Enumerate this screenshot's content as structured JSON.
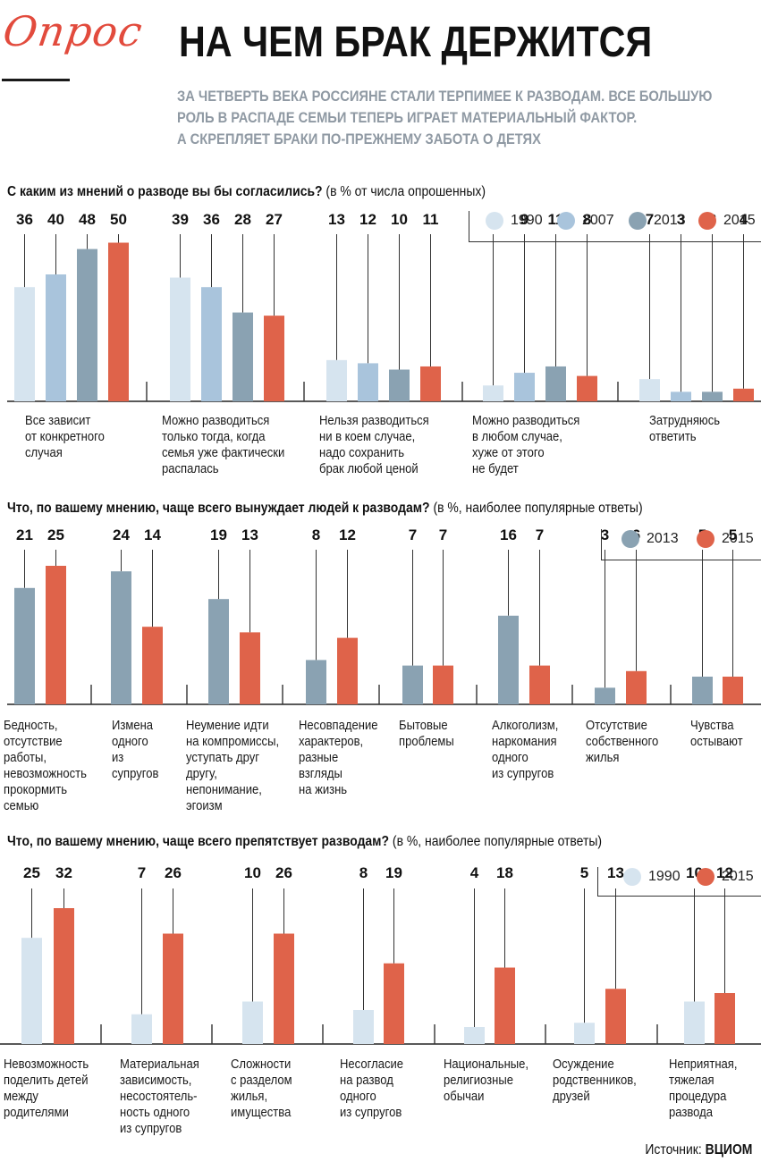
{
  "header": {
    "logo_text": "Опрос",
    "headline": "НА ЧЕМ БРАК ДЕРЖИТСЯ",
    "subhead_lines": [
      "ЗА ЧЕТВЕРТЬ ВЕКА РОССИЯНЕ СТАЛИ ТЕРПИМЕЕ К РАЗВОДАМ. ВСЕ БОЛЬШУЮ",
      "РОЛЬ В РАСПАДЕ СЕМЬИ ТЕПЕРЬ ИГРАЕТ МАТЕРИАЛЬНЫЙ ФАКТОР.",
      "А СКРЕПЛЯЕТ БРАКИ ПО-ПРЕЖНЕМУ ЗАБОТА О ДЕТЯХ"
    ]
  },
  "colors": {
    "1990": "#d6e4ef",
    "2007": "#a9c4dc",
    "2013": "#8aa2b2",
    "2015": "#df634a",
    "logo": "#e24b3d",
    "subhead": "#8f99a3"
  },
  "chart_data": [
    {
      "type": "bar",
      "title_bold": "С каким из мнений о разводе вы бы согласились?",
      "title_note": "(в % от числа опрошенных)",
      "series": [
        {
          "name": "1990",
          "values": [
            36,
            39,
            13,
            5,
            7
          ]
        },
        {
          "name": "2007",
          "values": [
            40,
            36,
            12,
            9,
            3
          ]
        },
        {
          "name": "2013",
          "values": [
            48,
            28,
            10,
            11,
            3
          ]
        },
        {
          "name": "2015",
          "values": [
            50,
            27,
            11,
            8,
            4
          ]
        }
      ],
      "categories": [
        "Все зависит\nот конкретного\nслучая",
        "Можно разводиться\nтолько тогда, когда\nсемья уже фактически\nраспалась",
        "Нельзя разводиться\nни в коем случае,\nнадо сохранить\nбрак любой ценой",
        "Можно разводиться\nв любом случае,\nхуже от этого\nне будет",
        "Затрудняюсь\nответить"
      ]
    },
    {
      "type": "bar",
      "title_bold": "Что, по вашему мнению, чаще всего вынуждает людей к разводам?",
      "title_note": "(в %, наиболее популярные ответы)",
      "series": [
        {
          "name": "2013",
          "values": [
            21,
            24,
            19,
            8,
            7,
            16,
            3,
            5
          ]
        },
        {
          "name": "2015",
          "values": [
            25,
            14,
            13,
            12,
            7,
            7,
            6,
            5
          ]
        }
      ],
      "categories": [
        "Бедность,\nотсутствие\nработы,\nневозможность\nпрокормить\nсемью",
        "Измена\nодного\nиз\nсупругов",
        "Неумение идти\nна компромиссы,\nуступать друг\nдругу,\nнепонимание,\nэгоизм",
        "Несовпадение\nхарактеров,\nразные\nвзгляды\nна жизнь",
        "Бытовые\nпроблемы",
        "Алкоголизм,\nнаркомания\nодного\nиз супругов",
        "Отсутствие\nсобственного\nжилья",
        "Чувства\nостывают"
      ]
    },
    {
      "type": "bar",
      "title_bold": "Что, по вашему мнению, чаще всего препятствует разводам?",
      "title_note": "(в %, наиболее популярные ответы)",
      "series": [
        {
          "name": "1990",
          "values": [
            25,
            7,
            10,
            8,
            4,
            5,
            10
          ]
        },
        {
          "name": "2015",
          "values": [
            32,
            26,
            26,
            19,
            18,
            13,
            12
          ]
        }
      ],
      "categories": [
        "Невозможность\nподелить детей\nмежду\nродителями",
        "Материальная\nзависимость,\nнесостоятель-\nность одного\nиз супругов",
        "Сложности\nс разделом\nжилья,\nимущества",
        "Несогласие\nна развод\nодного\nиз супругов",
        "Национальные,\nрелигиозные\nобычаи",
        "Осуждение\nродственников,\nдрузей",
        "Неприятная,\nтяжелая\nпроцедура\nразвода"
      ]
    }
  ],
  "source": {
    "label": "Источник:",
    "name": "ВЦИОМ"
  }
}
